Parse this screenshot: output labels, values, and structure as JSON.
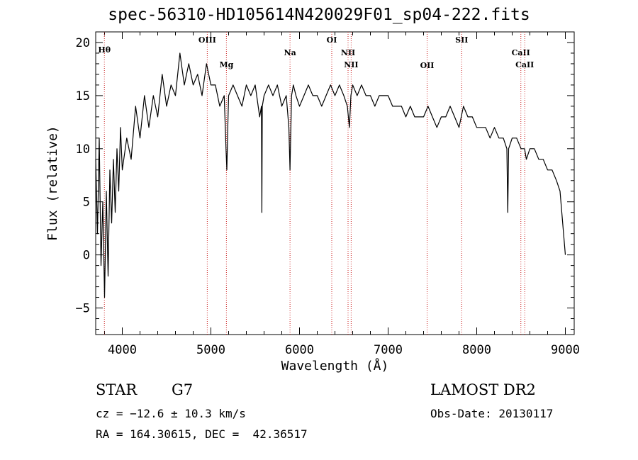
{
  "title": "spec-56310-HD105614N420029F01_sp04-222.fits",
  "info": {
    "object_class": "STAR",
    "subclass": "G7",
    "survey": "LAMOST DR2",
    "cz": "cz = −12.6 ± 10.3 km/s",
    "obs_date": "Obs-Date: 20130117",
    "radec": "RA = 164.30615, DEC =  42.36517"
  },
  "colors": {
    "line_marker": "#cc2222",
    "spectrum": "#000000"
  },
  "chart_data": {
    "type": "line",
    "title": "spec-56310-HD105614N420029F01_sp04-222.fits",
    "xlabel": "Wavelength (Å)",
    "ylabel": "Flux (relative)",
    "xlim": [
      3700,
      9100
    ],
    "ylim": [
      -7.5,
      21
    ],
    "xticks": [
      4000,
      5000,
      6000,
      7000,
      8000,
      9000
    ],
    "yticks": [
      -5,
      0,
      5,
      10,
      15,
      20
    ],
    "grid": false,
    "legend": "none",
    "series": [
      {
        "x": [
          3700,
          3720,
          3740,
          3760,
          3780,
          3800,
          3820,
          3840,
          3860,
          3880,
          3900,
          3920,
          3940,
          3960,
          3980,
          4000,
          4050,
          4100,
          4150,
          4200,
          4250,
          4300,
          4350,
          4400,
          4450,
          4500,
          4550,
          4600,
          4650,
          4700,
          4750,
          4800,
          4850,
          4900,
          4950,
          5000,
          5050,
          5100,
          5150,
          5170,
          5180,
          5190,
          5200,
          5250,
          5300,
          5350,
          5400,
          5450,
          5500,
          5550,
          5570,
          5575,
          5580,
          5600,
          5650,
          5700,
          5750,
          5800,
          5850,
          5880,
          5893,
          5900,
          5910,
          5930,
          5960,
          6000,
          6050,
          6100,
          6150,
          6200,
          6250,
          6300,
          6350,
          6400,
          6450,
          6500,
          6540,
          6563,
          6580,
          6600,
          6650,
          6700,
          6750,
          6800,
          6850,
          6900,
          6950,
          7000,
          7050,
          7100,
          7150,
          7200,
          7250,
          7300,
          7350,
          7400,
          7450,
          7500,
          7550,
          7600,
          7650,
          7700,
          7750,
          7800,
          7850,
          7900,
          7950,
          8000,
          8050,
          8100,
          8150,
          8200,
          8250,
          8300,
          8340,
          8350,
          8360,
          8400,
          8450,
          8500,
          8540,
          8560,
          8600,
          8650,
          8700,
          8750,
          8800,
          8850,
          8900,
          8940,
          8960,
          8980,
          9000
        ],
        "values": [
          9,
          2,
          11,
          -1,
          5,
          -4,
          6,
          -2,
          8,
          3,
          9,
          4,
          10,
          6,
          12,
          8,
          11,
          9,
          14,
          11,
          15,
          12,
          15,
          13,
          17,
          14,
          16,
          15,
          19,
          16,
          18,
          16,
          17,
          15,
          18,
          16,
          16,
          14,
          15,
          10,
          8,
          12,
          15,
          16,
          15,
          14,
          16,
          15,
          16,
          13,
          14,
          4,
          14,
          15,
          16,
          15,
          16,
          14,
          15,
          12,
          8,
          11,
          15,
          16,
          15,
          14,
          15,
          16,
          15,
          15,
          14,
          15,
          16,
          15,
          16,
          15,
          14,
          12,
          15,
          16,
          15,
          16,
          15,
          15,
          14,
          15,
          15,
          15,
          14,
          14,
          14,
          13,
          14,
          13,
          13,
          13,
          14,
          13,
          12,
          13,
          13,
          14,
          13,
          12,
          14,
          13,
          13,
          12,
          12,
          12,
          11,
          12,
          11,
          11,
          10,
          4,
          10,
          11,
          11,
          10,
          10,
          9,
          10,
          10,
          9,
          9,
          8,
          8,
          7,
          6,
          4,
          2,
          0
        ]
      }
    ],
    "annotations": [
      {
        "label": "Hθ",
        "x": 3798
      },
      {
        "label": "OIII",
        "x": 4959
      },
      {
        "label": "Mg",
        "x": 5175
      },
      {
        "label": "Na",
        "x": 5893
      },
      {
        "label": "OI",
        "x": 6364
      },
      {
        "label": "NII",
        "x": 6548
      },
      {
        "label": "NII",
        "x": 6583
      },
      {
        "label": "OII",
        "x": 7440
      },
      {
        "label": "SII",
        "x": 7830
      },
      {
        "label": "CaII",
        "x": 8498
      },
      {
        "label": "CaII",
        "x": 8542
      }
    ]
  }
}
